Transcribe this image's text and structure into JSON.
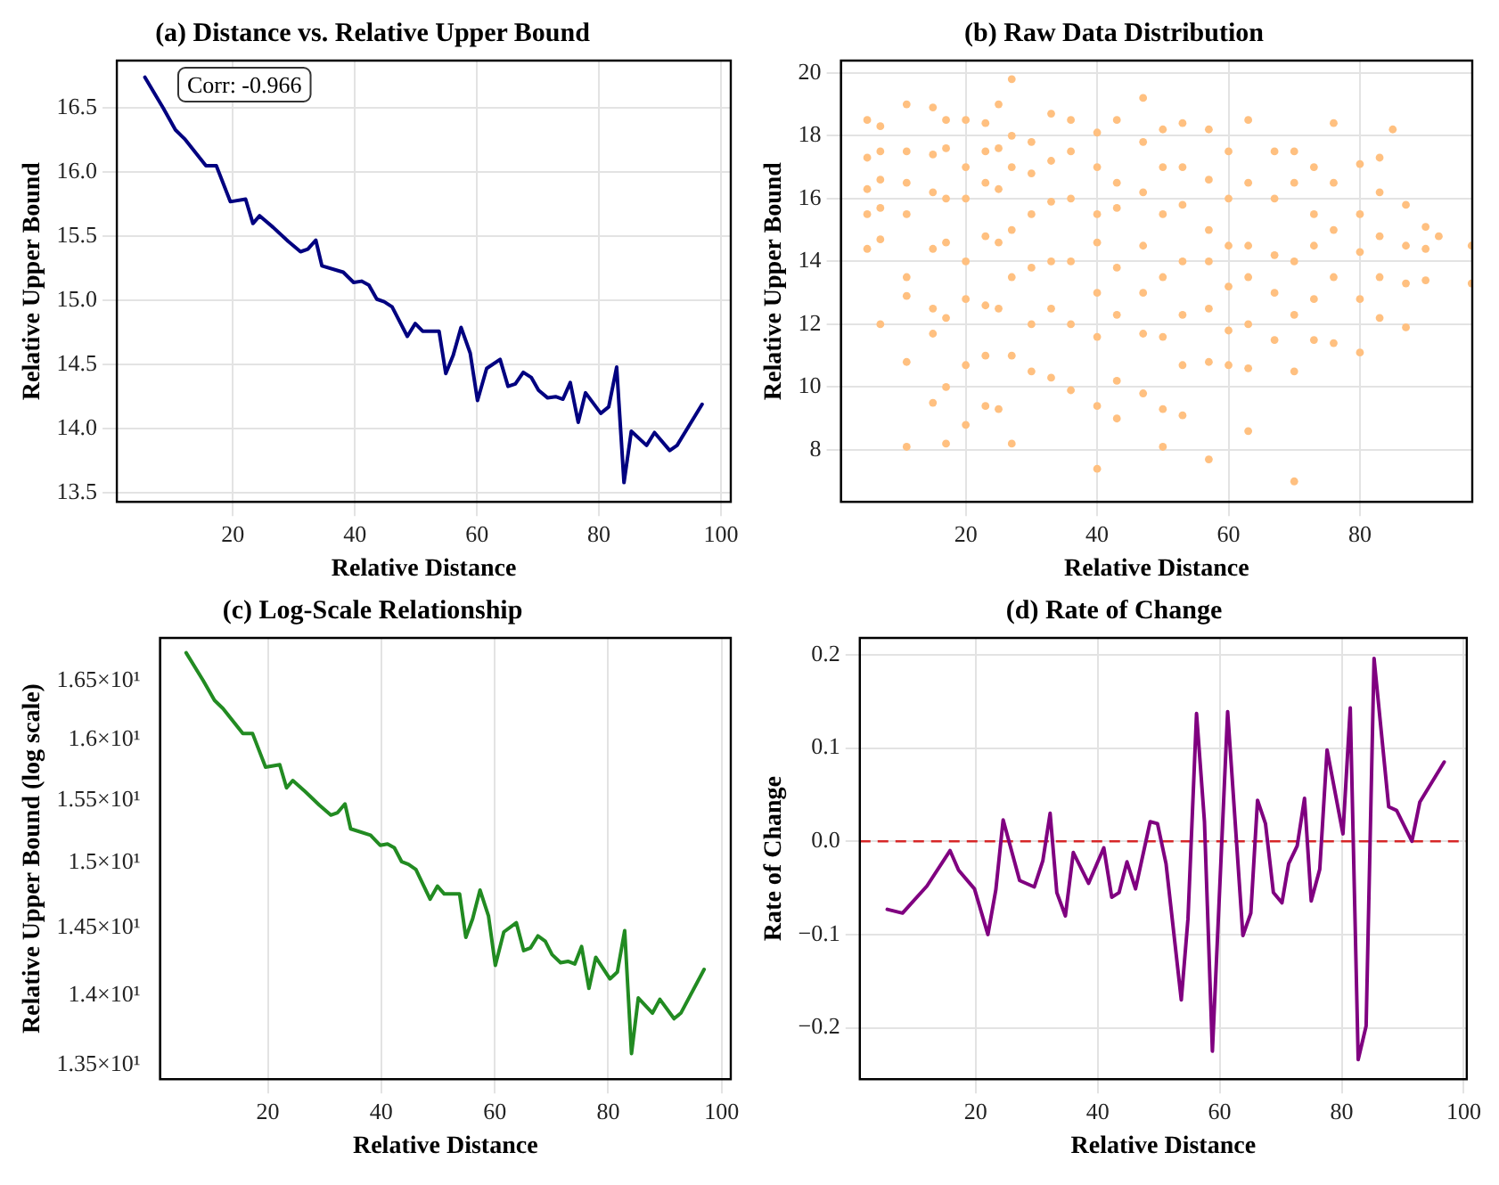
{
  "chart_data": [
    {
      "type": "line",
      "title": "(a) Distance vs. Relative Upper Bound",
      "xlabel": "Relative Distance",
      "ylabel": "Relative Upper Bound",
      "annotations": [
        "Corr: -0.966"
      ],
      "xlim": [
        1,
        101.6
      ],
      "ylim": [
        13.43,
        16.87
      ],
      "xticks": [
        20,
        40,
        60,
        80,
        100
      ],
      "yticks": [
        13.5,
        {
          "value": 14,
          "label": "14.0"
        },
        14.5,
        {
          "value": 15,
          "label": "15.0"
        },
        15.5,
        {
          "value": 16,
          "label": "16.0"
        },
        16.5
      ],
      "grid": true,
      "marker": "none",
      "line_style": "solid",
      "series": [
        {
          "color": "#000080",
          "x": [
            5.6,
            8.6,
            10.6,
            12.1,
            15.6,
            17.3,
            19.6,
            22.1,
            23.3,
            24.4,
            26.6,
            29.1,
            31.1,
            32.3,
            33.6,
            34.6,
            38.1,
            39.8,
            41.1,
            42.3,
            43.6,
            44.8,
            46.1,
            48.6,
            49.9,
            51.1,
            53.8,
            54.9,
            56.1,
            57.4,
            58.9,
            60.1,
            61.6,
            63.8,
            65.1,
            66.3,
            67.6,
            68.9,
            70.1,
            71.6,
            72.9,
            74.1,
            75.3,
            76.6,
            77.8,
            80.3,
            81.6,
            82.9,
            84.1,
            85.3,
            87.8,
            89.1,
            91.6,
            92.8,
            96.9
          ],
          "values": [
            16.74,
            16.5,
            16.33,
            16.26,
            16.05,
            16.05,
            15.77,
            15.79,
            15.6,
            15.66,
            15.57,
            15.46,
            15.38,
            15.4,
            15.47,
            15.27,
            15.22,
            15.14,
            15.15,
            15.12,
            15.01,
            14.99,
            14.95,
            14.72,
            14.82,
            14.76,
            14.76,
            14.43,
            14.57,
            14.79,
            14.59,
            14.22,
            14.47,
            14.54,
            14.33,
            14.35,
            14.44,
            14.4,
            14.3,
            14.24,
            14.25,
            14.23,
            14.36,
            14.05,
            14.28,
            14.12,
            14.17,
            14.48,
            13.58,
            13.98,
            13.87,
            13.97,
            13.83,
            13.87,
            14.19
          ]
        }
      ]
    },
    {
      "type": "scatter",
      "title": "(b) Raw Data Distribution",
      "xlabel": "Relative Distance",
      "ylabel": "Relative Upper Bound",
      "xlim": [
        1,
        97.1
      ],
      "ylim": [
        6.35,
        20.39
      ],
      "xticks": [
        20,
        40,
        60,
        80
      ],
      "yticks": [
        8,
        10,
        12,
        14,
        16,
        18,
        20
      ],
      "grid": true,
      "marker": "circle",
      "series": [
        {
          "color": "#ffc080",
          "x": [
            5,
            5,
            5,
            5,
            5,
            7,
            7,
            7,
            7,
            7,
            7,
            11,
            11,
            11,
            11,
            11,
            11,
            11,
            11,
            15,
            15,
            15,
            15,
            15,
            15,
            15,
            17,
            17,
            17,
            17,
            17,
            17,
            17,
            20,
            20,
            20,
            20,
            20,
            20,
            20,
            23,
            23,
            23,
            23,
            23,
            23,
            23,
            25,
            25,
            25,
            25,
            25,
            25,
            27,
            27,
            27,
            27,
            27,
            27,
            27,
            30,
            30,
            30,
            30,
            30,
            30,
            33,
            33,
            33,
            33,
            33,
            33,
            36,
            36,
            36,
            36,
            36,
            36,
            40,
            40,
            40,
            40,
            40,
            40,
            40,
            40,
            43,
            43,
            43,
            43,
            43,
            43,
            43,
            47,
            47,
            47,
            47,
            47,
            47,
            47,
            50,
            50,
            50,
            50,
            50,
            50,
            50,
            53,
            53,
            53,
            53,
            53,
            53,
            53,
            57,
            57,
            57,
            57,
            57,
            57,
            57,
            60,
            60,
            60,
            60,
            60,
            60,
            63,
            63,
            63,
            63,
            63,
            63,
            63,
            67,
            67,
            67,
            67,
            67,
            70,
            70,
            70,
            70,
            70,
            70,
            73,
            73,
            73,
            73,
            73,
            76,
            76,
            76,
            76,
            76,
            80,
            80,
            80,
            80,
            80,
            83,
            83,
            83,
            83,
            83,
            85,
            87,
            87,
            87,
            87,
            90,
            90,
            90,
            92,
            97,
            97
          ],
          "values": [
            18.5,
            17.3,
            16.3,
            15.5,
            14.4,
            18.3,
            17.5,
            16.6,
            15.7,
            14.7,
            12,
            19,
            17.5,
            16.5,
            15.5,
            13.5,
            12.9,
            10.8,
            8.1,
            18.9,
            17.4,
            16.2,
            14.4,
            12.5,
            11.7,
            9.5,
            18.5,
            17.6,
            16,
            14.6,
            12.2,
            10,
            8.2,
            18.5,
            17,
            16,
            14,
            12.8,
            10.7,
            8.8,
            18.4,
            17.5,
            16.5,
            14.8,
            12.6,
            11,
            9.4,
            19,
            17.6,
            16.3,
            14.6,
            12.5,
            9.3,
            19.8,
            18,
            17,
            15,
            13.5,
            11,
            8.2,
            17.8,
            16.8,
            15.5,
            13.8,
            12,
            10.5,
            18.7,
            17.2,
            15.9,
            14,
            12.5,
            10.3,
            18.5,
            17.5,
            16,
            14,
            12,
            9.9,
            18.1,
            17,
            15.5,
            14.6,
            13,
            11.6,
            9.4,
            7.4,
            18.5,
            16.5,
            15.7,
            13.8,
            12.3,
            10.2,
            9,
            19.2,
            17.8,
            16.2,
            14.5,
            13,
            11.7,
            9.8,
            18.2,
            17,
            15.5,
            13.5,
            11.6,
            9.3,
            8.1,
            18.4,
            17,
            15.8,
            14,
            12.3,
            10.7,
            9.1,
            18.2,
            16.6,
            15,
            14,
            12.5,
            10.8,
            7.7,
            17.5,
            16,
            14.5,
            13.2,
            11.8,
            10.7,
            18.5,
            16.5,
            14.5,
            13.5,
            12,
            10.6,
            8.6,
            17.5,
            16,
            14.2,
            13,
            11.5,
            17.5,
            16.5,
            14,
            12.3,
            10.5,
            7,
            17,
            15.5,
            14.5,
            12.8,
            11.5,
            18.4,
            16.5,
            15,
            13.5,
            11.4,
            17.1,
            15.5,
            14.3,
            12.8,
            11.1,
            17.3,
            16.2,
            14.8,
            13.5,
            12.2,
            18.2,
            15.8,
            14.5,
            13.3,
            11.9,
            15.1,
            14.4,
            13.4,
            14.8,
            14.5,
            13.3
          ]
        }
      ]
    },
    {
      "type": "line",
      "title": "(c) Log-Scale Relationship",
      "xlabel": "Relative Distance",
      "ylabel": "Relative Upper Bound (log scale)",
      "log": "y",
      "xlim": [
        1,
        101.6
      ],
      "ylim": [
        13.45,
        16.87
      ],
      "xticks": [
        20,
        40,
        60,
        80,
        100
      ],
      "yticks": [
        {
          "value": 13.5,
          "label": "1.35×10¹"
        },
        {
          "value": 14,
          "label": "1.4×10¹"
        },
        {
          "value": 14.5,
          "label": "1.45×10¹"
        },
        {
          "value": 15,
          "label": "1.5×10¹"
        },
        {
          "value": 15.5,
          "label": "1.55×10¹"
        },
        {
          "value": 16,
          "label": "1.6×10¹"
        },
        {
          "value": 16.5,
          "label": "1.65×10¹"
        }
      ],
      "grid": "x",
      "marker": "none",
      "line_style": "solid",
      "series": [
        {
          "color": "#228b22",
          "x": [
            5.6,
            8.6,
            10.6,
            12.1,
            15.6,
            17.3,
            19.6,
            22.1,
            23.3,
            24.4,
            26.6,
            29.1,
            31.1,
            32.3,
            33.6,
            34.6,
            38.1,
            39.8,
            41.1,
            42.3,
            43.6,
            44.8,
            46.1,
            48.6,
            49.9,
            51.1,
            53.8,
            54.9,
            56.1,
            57.4,
            58.9,
            60.1,
            61.6,
            63.8,
            65.1,
            66.3,
            67.6,
            68.9,
            70.1,
            71.6,
            72.9,
            74.1,
            75.3,
            76.6,
            77.8,
            80.3,
            81.6,
            82.9,
            84.1,
            85.3,
            87.8,
            89.1,
            91.6,
            92.8,
            96.9
          ],
          "values": [
            16.74,
            16.5,
            16.33,
            16.26,
            16.05,
            16.05,
            15.77,
            15.79,
            15.6,
            15.66,
            15.57,
            15.46,
            15.38,
            15.4,
            15.47,
            15.27,
            15.22,
            15.14,
            15.15,
            15.12,
            15.01,
            14.99,
            14.95,
            14.72,
            14.82,
            14.76,
            14.76,
            14.43,
            14.57,
            14.79,
            14.59,
            14.22,
            14.47,
            14.54,
            14.33,
            14.35,
            14.44,
            14.4,
            14.3,
            14.24,
            14.25,
            14.23,
            14.36,
            14.05,
            14.28,
            14.12,
            14.17,
            14.48,
            13.58,
            13.98,
            13.87,
            13.97,
            13.83,
            13.87,
            14.19
          ]
        }
      ]
    },
    {
      "type": "line",
      "title": "(d) Rate of Change",
      "xlabel": "Relative Distance",
      "ylabel": "Rate of Change",
      "xlim": [
        1,
        100.5
      ],
      "ylim": [
        -0.255,
        0.218
      ],
      "xticks": [
        20,
        40,
        60,
        80,
        100
      ],
      "yticks": [
        {
          "value": -0.2,
          "label": "−0.2"
        },
        {
          "value": -0.1,
          "label": "−0.1"
        },
        {
          "value": 0,
          "label": "0.0"
        },
        0.1,
        0.2
      ],
      "grid": true,
      "marker": "none",
      "line_style": "solid",
      "ref_lines": [
        {
          "axis": "y",
          "value": 0,
          "color": "#d62728",
          "line_style": "dashed"
        }
      ],
      "series": [
        {
          "color": "#800080",
          "x": [
            5.5,
            8,
            12,
            15.8,
            17.2,
            19.8,
            22,
            23.3,
            24.5,
            27.2,
            29.6,
            31,
            32.2,
            33.3,
            34.7,
            36,
            38.5,
            41,
            42.3,
            43.5,
            44.8,
            46.2,
            48.6,
            49.8,
            51.2,
            53.7,
            54.8,
            56.2,
            57.5,
            58.8,
            61.3,
            63.8,
            65.1,
            66.2,
            67.5,
            68.8,
            70.2,
            71.3,
            72.7,
            73.9,
            75,
            76.4,
            77.6,
            80.2,
            81.4,
            82.7,
            84,
            85.3,
            87.7,
            89,
            91.5,
            92.8,
            96.8
          ],
          "values": [
            -0.073,
            -0.077,
            -0.048,
            -0.01,
            -0.031,
            -0.051,
            -0.1,
            -0.052,
            0.023,
            -0.042,
            -0.049,
            -0.021,
            0.03,
            -0.055,
            -0.08,
            -0.012,
            -0.045,
            -0.007,
            -0.06,
            -0.055,
            -0.022,
            -0.051,
            0.021,
            0.019,
            -0.024,
            -0.17,
            -0.083,
            0.137,
            0.021,
            -0.225,
            0.139,
            -0.101,
            -0.077,
            0.044,
            0.019,
            -0.055,
            -0.066,
            -0.024,
            -0.005,
            0.046,
            -0.064,
            -0.03,
            0.098,
            0.008,
            0.143,
            -0.234,
            -0.198,
            0.196,
            0.037,
            0.033,
            0,
            0.042,
            0.085
          ]
        }
      ]
    }
  ]
}
